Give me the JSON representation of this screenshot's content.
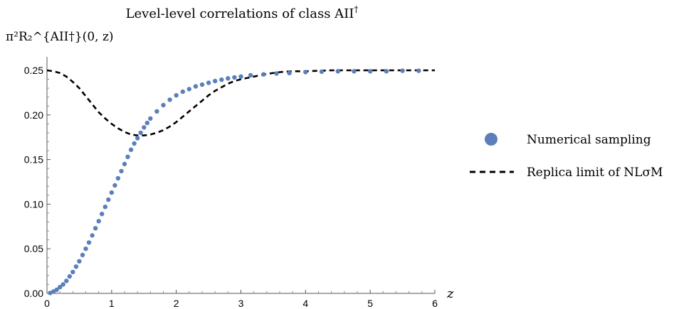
{
  "chart_data": {
    "type": "scatter",
    "title": "Level-level correlations of class AII†",
    "title_main": "Level-level correlations of class AII",
    "title_sup": "†",
    "ylabel": "π²R₂^{AII†}(0, z)",
    "xlabel": "z",
    "xlim": [
      0,
      6
    ],
    "ylim": [
      0,
      0.26
    ],
    "xticks": [
      0,
      1,
      2,
      3,
      4,
      5,
      6
    ],
    "xtick_labels": [
      "0",
      "1",
      "2",
      "3",
      "4",
      "5",
      "6"
    ],
    "yticks": [
      0.0,
      0.05,
      0.1,
      0.15,
      0.2,
      0.25
    ],
    "ytick_labels": [
      "0.00",
      "0.05",
      "0.10",
      "0.15",
      "0.20",
      "0.25"
    ],
    "grid": false,
    "legend_position": "right",
    "series": [
      {
        "name": "Numerical sampling",
        "kind": "points",
        "color": "#5b7fba",
        "x": [
          0.05,
          0.1,
          0.15,
          0.2,
          0.25,
          0.3,
          0.35,
          0.4,
          0.45,
          0.5,
          0.55,
          0.6,
          0.65,
          0.7,
          0.75,
          0.8,
          0.85,
          0.9,
          0.95,
          1.0,
          1.05,
          1.1,
          1.15,
          1.2,
          1.25,
          1.3,
          1.35,
          1.4,
          1.45,
          1.5,
          1.55,
          1.6,
          1.7,
          1.8,
          1.9,
          2.0,
          2.1,
          2.2,
          2.3,
          2.4,
          2.5,
          2.6,
          2.7,
          2.8,
          2.9,
          3.0,
          3.15,
          3.35,
          3.55,
          3.75,
          4.0,
          4.25,
          4.5,
          4.75,
          5.0,
          5.25,
          5.5,
          5.75
        ],
        "y": [
          0.0005,
          0.002,
          0.004,
          0.007,
          0.01,
          0.014,
          0.019,
          0.024,
          0.03,
          0.036,
          0.043,
          0.05,
          0.057,
          0.065,
          0.073,
          0.081,
          0.089,
          0.097,
          0.105,
          0.113,
          0.121,
          0.129,
          0.137,
          0.145,
          0.153,
          0.161,
          0.168,
          0.174,
          0.18,
          0.186,
          0.191,
          0.196,
          0.204,
          0.211,
          0.217,
          0.222,
          0.226,
          0.229,
          0.232,
          0.234,
          0.236,
          0.238,
          0.2395,
          0.241,
          0.242,
          0.243,
          0.2445,
          0.2455,
          0.2465,
          0.247,
          0.248,
          0.2485,
          0.249,
          0.249,
          0.249,
          0.249,
          0.2495,
          0.2495
        ]
      },
      {
        "name": "Replica limit of NLσM",
        "kind": "dashed-line",
        "color": "#000000",
        "x": [
          0.0,
          0.1,
          0.2,
          0.3,
          0.4,
          0.5,
          0.6,
          0.7,
          0.8,
          0.9,
          1.0,
          1.1,
          1.2,
          1.3,
          1.4,
          1.5,
          1.6,
          1.7,
          1.8,
          1.9,
          2.0,
          2.1,
          2.2,
          2.3,
          2.4,
          2.5,
          2.6,
          2.7,
          2.8,
          2.9,
          3.0,
          3.2,
          3.4,
          3.6,
          3.8,
          4.0,
          4.4,
          4.8,
          5.2,
          5.6,
          6.0
        ],
        "y": [
          0.25,
          0.249,
          0.247,
          0.243,
          0.237,
          0.23,
          0.221,
          0.212,
          0.203,
          0.196,
          0.19,
          0.185,
          0.181,
          0.178,
          0.177,
          0.177,
          0.178,
          0.18,
          0.183,
          0.187,
          0.192,
          0.198,
          0.204,
          0.21,
          0.216,
          0.222,
          0.227,
          0.231,
          0.235,
          0.238,
          0.24,
          0.243,
          0.246,
          0.248,
          0.249,
          0.249,
          0.25,
          0.25,
          0.25,
          0.25,
          0.25
        ]
      }
    ]
  }
}
